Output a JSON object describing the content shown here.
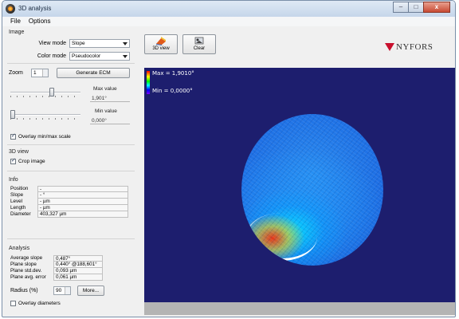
{
  "window": {
    "title": "3D analysis",
    "controls": {
      "minimize": "–",
      "maximize": "□",
      "close": "x"
    }
  },
  "menu": [
    {
      "label": "File"
    },
    {
      "label": "Options"
    }
  ],
  "image": {
    "section_label": "Image",
    "view_mode_label": "View mode",
    "view_mode_value": "Slope",
    "color_mode_label": "Color mode",
    "color_mode_value": "Pseudocolor",
    "zoom_label": "Zoom",
    "zoom_value": "1",
    "generate_button": "Generate ECM",
    "max_label": "Max value",
    "max_value": "1,901°",
    "min_label": "Min value",
    "min_value": "0,000°",
    "max_slider_fraction": 0.6,
    "min_slider_fraction": 0.0,
    "overlay_label": "Overlay min/max scale",
    "overlay_checked": true
  },
  "view3d": {
    "section_label": "3D view",
    "crop_label": "Crop image",
    "crop_checked": true
  },
  "info": {
    "section_label": "Info",
    "rows": [
      {
        "key": "Position",
        "value": "-"
      },
      {
        "key": "Slope",
        "value": "- °"
      },
      {
        "key": "Level",
        "value": "- µm"
      },
      {
        "key": "Length",
        "value": "- µm"
      },
      {
        "key": "Diameter",
        "value": "403,327 µm"
      }
    ]
  },
  "analysis": {
    "section_label": "Analysis",
    "rows": [
      {
        "key": "Average slope",
        "value": "0,487°"
      },
      {
        "key": "Plane slope",
        "value": "0,440° @188,601°"
      },
      {
        "key": "Plane std.dev.",
        "value": "0,093 µm"
      },
      {
        "key": "Plane avg. error",
        "value": "0,061 µm"
      }
    ],
    "radius_label": "Radius (%)",
    "radius_value": "90",
    "more_button": "More...",
    "overlay_diameters_label": "Overlay diameters",
    "overlay_diameters_checked": false
  },
  "toolbar": {
    "view3d_label": "3D view",
    "clear_label": "Clear"
  },
  "logo": {
    "text": "NYFORS"
  },
  "viewport": {
    "max_text": "Max = 1,9010°",
    "min_text": "Min = 0,0000°"
  },
  "colors": {
    "viewport_bg": "#1d1e6e",
    "accent": "#c8102e"
  }
}
